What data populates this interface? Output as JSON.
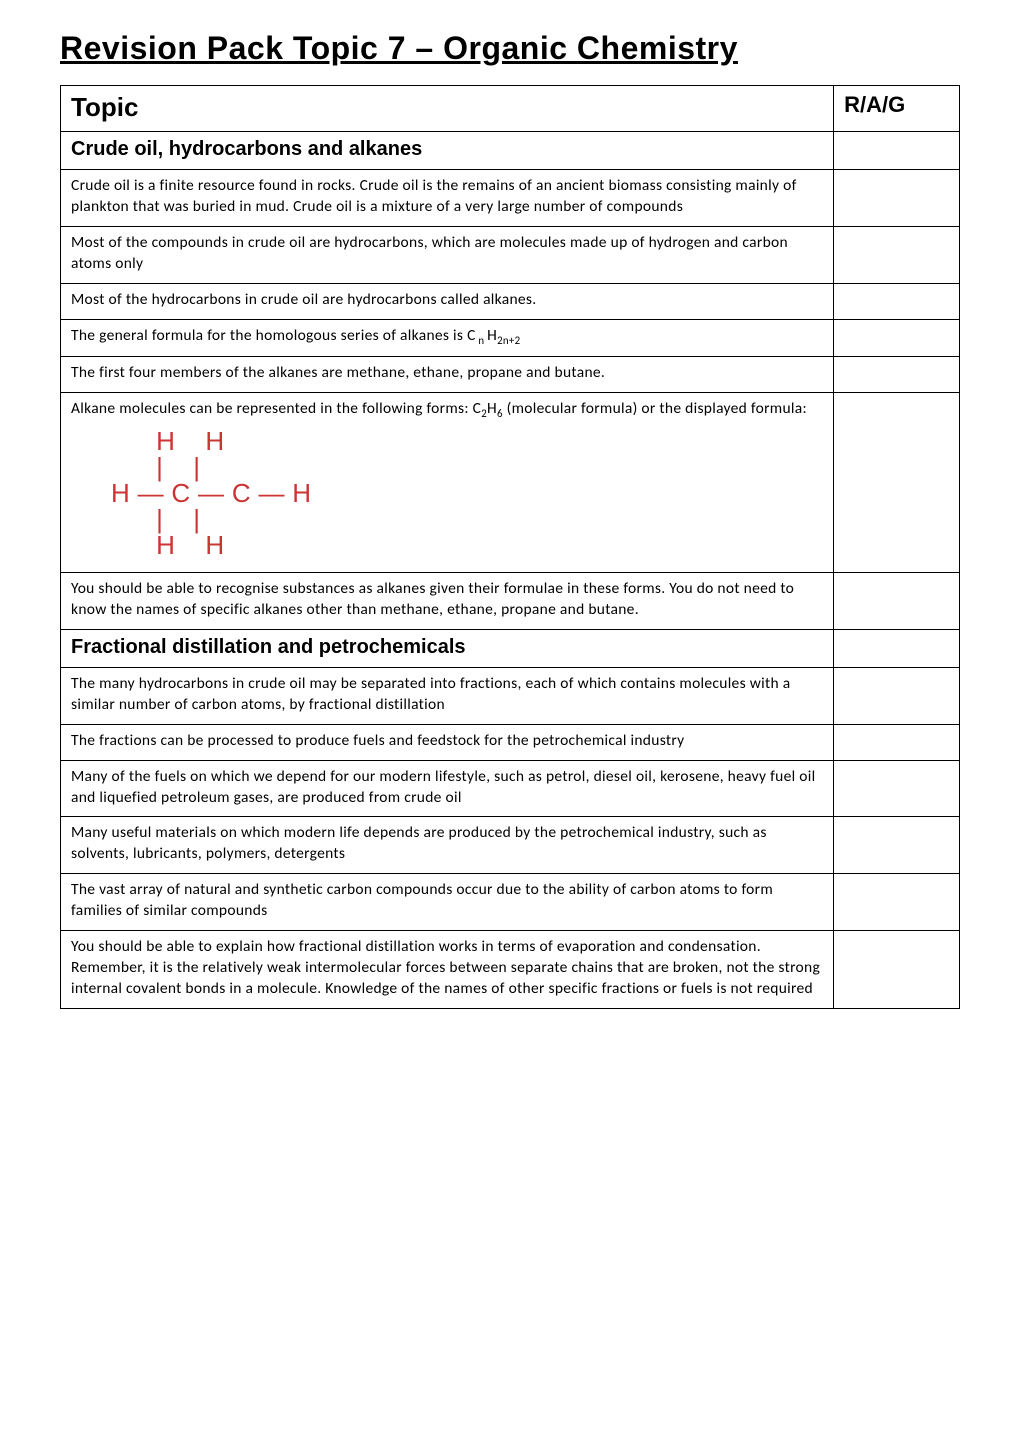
{
  "title": "Revision Pack Topic 7 – Organic Chemistry",
  "headers": {
    "topic": "Topic",
    "rag": "R/A/G"
  },
  "sections": [
    {
      "heading": "Crude oil, hydrocarbons and alkanes",
      "rows": [
        "Crude oil is a finite resource found in rocks. Crude oil is the remains of an ancient biomass consisting mainly of plankton that was buried in mud. Crude oil is a mixture of a very large number of compounds",
        "Most of the compounds in crude oil are hydrocarbons, which are molecules made up of hydrogen and carbon atoms only",
        "Most of the hydrocarbons in crude oil are hydrocarbons called alkanes.",
        "The general formula for the homologous series of alkanes is C n H2n+2",
        "The first four members of the alkanes are methane, ethane, propane and butane.",
        "Alkane molecules can be represented in the following forms: C2H6 (molecular formula) or the displayed formula:",
        "You should be able to recognise substances as alkanes given their formulae in these forms. You do not need to know the names of specific alkanes other than methane, ethane, propane and butane."
      ]
    },
    {
      "heading": "Fractional distillation and petrochemicals",
      "rows": [
        "The many hydrocarbons in crude oil may be separated into fractions, each of which contains molecules with a similar number of carbon atoms, by fractional distillation",
        "The fractions can be processed to produce fuels and feedstock for the petrochemical industry",
        "Many of the fuels on which we depend for our modern lifestyle, such as petrol, diesel oil, kerosene, heavy fuel oil and liquefied petroleum gases, are produced from crude oil",
        "Many useful materials on which modern life depends are produced by the petrochemical industry, such as solvents, lubricants, polymers, detergents",
        "The vast array of natural and synthetic carbon compounds occur due to the ability of carbon atoms to form families of similar compounds",
        "You should be able to explain how fractional distillation works in terms of evaporation and condensation. Remember, it is the relatively weak intermolecular forces between separate chains that are broken, not the strong internal covalent bonds in a molecule. Knowledge of the names of other specific fractions or fuels is not required"
      ]
    }
  ],
  "ethane_diagram": "      H    H\n      |    |\nH — C — C — H\n      |    |\n      H    H",
  "colors": {
    "text": "#000000",
    "formula": "#cc3333",
    "border": "#000000",
    "background": "#ffffff"
  }
}
